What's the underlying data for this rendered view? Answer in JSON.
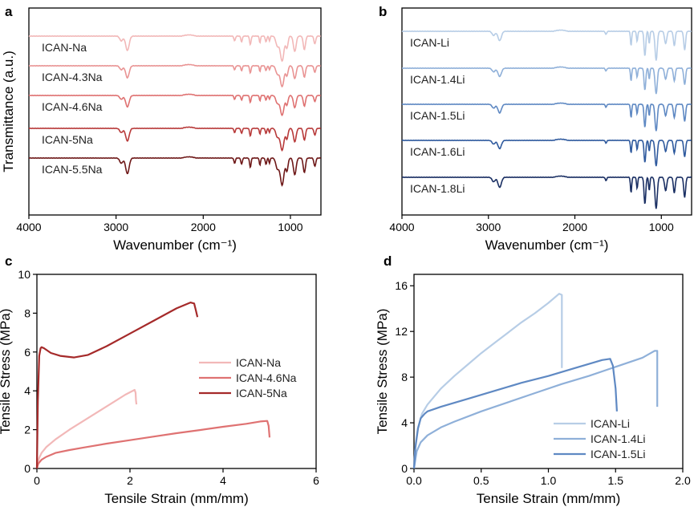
{
  "chart_data": [
    {
      "panel": "a",
      "type": "line",
      "xlabel": "Wavenumber (cm⁻¹)",
      "ylabel": "Transmittance (a.u.)",
      "xlim": [
        4000,
        650
      ],
      "x_reversed": true,
      "xticks": [
        4000,
        3000,
        2000,
        1000
      ],
      "series": [
        {
          "name": "ICAN-Na",
          "color": "#f2b8b8"
        },
        {
          "name": "ICAN-4.3Na",
          "color": "#e99494"
        },
        {
          "name": "ICAN-4.6Na",
          "color": "#df7272"
        },
        {
          "name": "ICAN-5Na",
          "color": "#b83a3a"
        },
        {
          "name": "ICAN-5.5Na",
          "color": "#6e1818"
        }
      ]
    },
    {
      "panel": "b",
      "type": "line",
      "xlabel": "Wavenumber (cm⁻¹)",
      "ylabel": "",
      "xlim": [
        4000,
        650
      ],
      "x_reversed": true,
      "xticks": [
        4000,
        3000,
        2000,
        1000
      ],
      "series": [
        {
          "name": "ICAN-Li",
          "color": "#b7cde6"
        },
        {
          "name": "ICAN-1.4Li",
          "color": "#8fb0d9"
        },
        {
          "name": "ICAN-1.5Li",
          "color": "#5f89c3"
        },
        {
          "name": "ICAN-1.6Li",
          "color": "#2f5a9e"
        },
        {
          "name": "ICAN-1.8Li",
          "color": "#1a2f63"
        }
      ]
    },
    {
      "panel": "c",
      "type": "line",
      "xlabel": "Tensile Strain (mm/mm)",
      "ylabel": "Tensile Stress (MPa)",
      "xlim": [
        0,
        6
      ],
      "ylim": [
        0,
        10
      ],
      "xticks": [
        0,
        2,
        4,
        6
      ],
      "yticks": [
        0,
        2,
        4,
        6,
        8,
        10
      ],
      "series": [
        {
          "name": "ICAN-Na",
          "color": "#f2b8b8",
          "x": [
            0,
            0.02,
            0.05,
            0.1,
            0.2,
            0.4,
            0.7,
            1.0,
            1.3,
            1.6,
            1.9,
            2.1,
            2.12,
            2.13,
            2.14
          ],
          "y": [
            0,
            0.3,
            0.55,
            0.8,
            1.1,
            1.5,
            2.0,
            2.45,
            2.9,
            3.35,
            3.8,
            4.05,
            3.9,
            3.5,
            3.3
          ]
        },
        {
          "name": "ICAN-4.6Na",
          "color": "#df7272",
          "x": [
            0,
            0.03,
            0.1,
            0.2,
            0.4,
            0.7,
            1.0,
            1.5,
            2.0,
            2.5,
            3.0,
            3.5,
            4.0,
            4.5,
            4.8,
            4.95,
            4.98,
            5.0
          ],
          "y": [
            0,
            0.25,
            0.45,
            0.6,
            0.8,
            0.95,
            1.08,
            1.28,
            1.46,
            1.64,
            1.82,
            1.98,
            2.15,
            2.3,
            2.42,
            2.45,
            2.2,
            1.6
          ]
        },
        {
          "name": "ICAN-5Na",
          "color": "#a52a2a",
          "x": [
            0,
            0.02,
            0.05,
            0.08,
            0.1,
            0.15,
            0.3,
            0.5,
            0.8,
            1.1,
            1.5,
            2.0,
            2.5,
            3.0,
            3.3,
            3.38,
            3.42,
            3.45
          ],
          "y": [
            0,
            3.5,
            5.8,
            6.2,
            6.25,
            6.2,
            5.95,
            5.8,
            5.72,
            5.85,
            6.3,
            6.95,
            7.6,
            8.25,
            8.55,
            8.5,
            8.1,
            7.8
          ]
        }
      ]
    },
    {
      "panel": "d",
      "type": "line",
      "xlabel": "Tensile Strain (mm/mm)",
      "ylabel": "Tensile Stress (MPa)",
      "xlim": [
        0,
        2.0
      ],
      "ylim": [
        0,
        17
      ],
      "xticks": [
        0.0,
        0.5,
        1.0,
        1.5,
        2.0
      ],
      "yticks": [
        0,
        4,
        8,
        12,
        16
      ],
      "series": [
        {
          "name": "ICAN-Li",
          "color": "#b7cde6",
          "x": [
            0,
            0.01,
            0.03,
            0.06,
            0.1,
            0.2,
            0.3,
            0.4,
            0.5,
            0.6,
            0.7,
            0.8,
            0.9,
            1.0,
            1.08,
            1.1,
            1.1
          ],
          "y": [
            0,
            2.0,
            3.6,
            4.8,
            5.6,
            7.0,
            8.1,
            9.1,
            10.1,
            11.0,
            11.9,
            12.8,
            13.6,
            14.5,
            15.3,
            15.2,
            8.8
          ]
        },
        {
          "name": "ICAN-1.4Li",
          "color": "#8fb0d9",
          "x": [
            0,
            0.02,
            0.05,
            0.1,
            0.2,
            0.3,
            0.5,
            0.7,
            0.9,
            1.1,
            1.3,
            1.5,
            1.7,
            1.79,
            1.81,
            1.81
          ],
          "y": [
            0,
            1.5,
            2.3,
            2.9,
            3.6,
            4.1,
            5.0,
            5.8,
            6.6,
            7.4,
            8.1,
            8.9,
            9.7,
            10.3,
            10.3,
            5.4
          ]
        },
        {
          "name": "ICAN-1.5Li",
          "color": "#5f89c3",
          "x": [
            0,
            0.01,
            0.03,
            0.05,
            0.08,
            0.1,
            0.2,
            0.4,
            0.6,
            0.8,
            1.0,
            1.2,
            1.4,
            1.46,
            1.48,
            1.5,
            1.51
          ],
          "y": [
            0,
            1.8,
            3.5,
            4.4,
            4.8,
            5.0,
            5.4,
            6.1,
            6.8,
            7.5,
            8.1,
            8.8,
            9.5,
            9.6,
            9.0,
            7.0,
            5.0
          ]
        }
      ]
    }
  ],
  "panels": {
    "a": {
      "letter": "a"
    },
    "b": {
      "letter": "b"
    },
    "c": {
      "letter": "c"
    },
    "d": {
      "letter": "d"
    }
  }
}
